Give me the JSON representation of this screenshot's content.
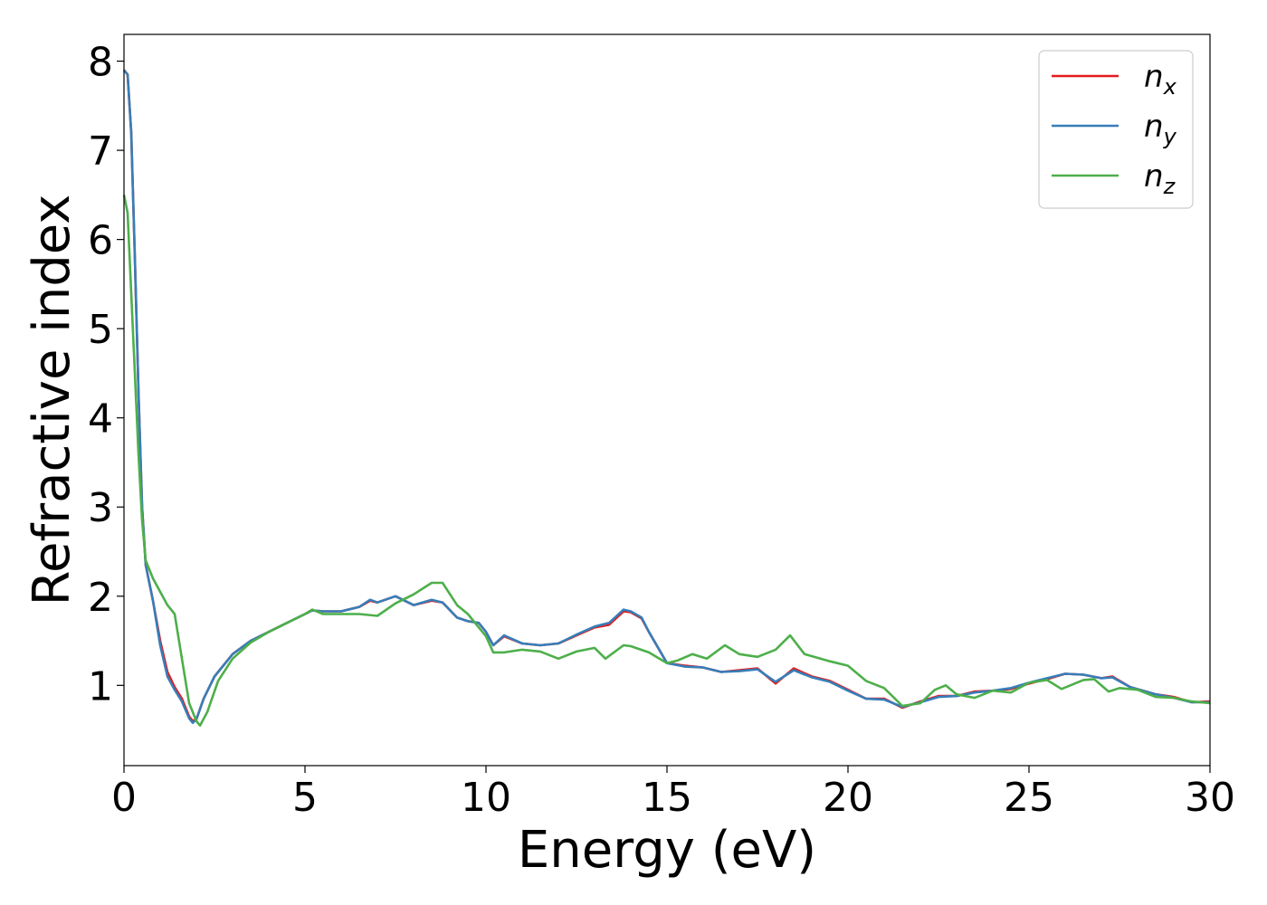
{
  "chart_data": {
    "type": "line",
    "xlabel": "Energy (eV)",
    "ylabel": "Refractive index",
    "xlim": [
      0,
      30
    ],
    "ylim": [
      0.1,
      8.3
    ],
    "xticks": [
      "0",
      "5",
      "10",
      "15",
      "20",
      "25",
      "30"
    ],
    "yticks": [
      "1",
      "2",
      "3",
      "4",
      "5",
      "6",
      "7",
      "8"
    ],
    "grid": false,
    "legend_position": "top-right",
    "series": [
      {
        "name": "n",
        "subscript": "x",
        "color": "#e41a1c",
        "points": [
          [
            0,
            7.9
          ],
          [
            0.1,
            7.85
          ],
          [
            0.2,
            7.2
          ],
          [
            0.3,
            5.8
          ],
          [
            0.4,
            4.3
          ],
          [
            0.5,
            3.0
          ],
          [
            0.6,
            2.35
          ],
          [
            0.8,
            1.95
          ],
          [
            1.0,
            1.5
          ],
          [
            1.2,
            1.15
          ],
          [
            1.4,
            0.98
          ],
          [
            1.6,
            0.85
          ],
          [
            1.8,
            0.65
          ],
          [
            1.9,
            0.6
          ],
          [
            2.0,
            0.62
          ],
          [
            2.2,
            0.85
          ],
          [
            2.5,
            1.1
          ],
          [
            3.0,
            1.35
          ],
          [
            3.5,
            1.5
          ],
          [
            4.0,
            1.6
          ],
          [
            4.5,
            1.7
          ],
          [
            5.0,
            1.8
          ],
          [
            5.2,
            1.84
          ],
          [
            5.5,
            1.83
          ],
          [
            6.0,
            1.83
          ],
          [
            6.5,
            1.88
          ],
          [
            6.8,
            1.95
          ],
          [
            7.0,
            1.93
          ],
          [
            7.5,
            2.0
          ],
          [
            8.0,
            1.9
          ],
          [
            8.5,
            1.95
          ],
          [
            8.8,
            1.93
          ],
          [
            9.2,
            1.76
          ],
          [
            9.5,
            1.72
          ],
          [
            9.8,
            1.7
          ],
          [
            10.0,
            1.6
          ],
          [
            10.2,
            1.45
          ],
          [
            10.5,
            1.55
          ],
          [
            11.0,
            1.47
          ],
          [
            11.5,
            1.45
          ],
          [
            12.0,
            1.47
          ],
          [
            12.5,
            1.56
          ],
          [
            13.0,
            1.65
          ],
          [
            13.4,
            1.68
          ],
          [
            13.8,
            1.83
          ],
          [
            14.0,
            1.82
          ],
          [
            14.3,
            1.75
          ],
          [
            14.5,
            1.6
          ],
          [
            15.0,
            1.25
          ],
          [
            15.5,
            1.22
          ],
          [
            16.0,
            1.2
          ],
          [
            16.5,
            1.15
          ],
          [
            17.0,
            1.17
          ],
          [
            17.5,
            1.19
          ],
          [
            18.0,
            1.02
          ],
          [
            18.5,
            1.19
          ],
          [
            19.0,
            1.1
          ],
          [
            19.5,
            1.05
          ],
          [
            20.0,
            0.95
          ],
          [
            20.5,
            0.85
          ],
          [
            21.0,
            0.85
          ],
          [
            21.5,
            0.75
          ],
          [
            22.0,
            0.82
          ],
          [
            22.5,
            0.88
          ],
          [
            23.0,
            0.88
          ],
          [
            23.5,
            0.93
          ],
          [
            24.0,
            0.94
          ],
          [
            24.5,
            0.96
          ],
          [
            25.0,
            1.02
          ],
          [
            25.5,
            1.07
          ],
          [
            26.0,
            1.13
          ],
          [
            26.5,
            1.12
          ],
          [
            27.0,
            1.08
          ],
          [
            27.3,
            1.1
          ],
          [
            27.8,
            0.98
          ],
          [
            28.5,
            0.9
          ],
          [
            29.0,
            0.87
          ],
          [
            29.5,
            0.81
          ],
          [
            30.0,
            0.82
          ]
        ]
      },
      {
        "name": "n",
        "subscript": "y",
        "color": "#377eb8",
        "points": [
          [
            0,
            7.9
          ],
          [
            0.1,
            7.85
          ],
          [
            0.2,
            7.2
          ],
          [
            0.3,
            5.8
          ],
          [
            0.4,
            4.3
          ],
          [
            0.5,
            3.0
          ],
          [
            0.6,
            2.35
          ],
          [
            0.8,
            1.95
          ],
          [
            1.0,
            1.45
          ],
          [
            1.2,
            1.1
          ],
          [
            1.4,
            0.95
          ],
          [
            1.6,
            0.82
          ],
          [
            1.8,
            0.63
          ],
          [
            1.9,
            0.58
          ],
          [
            2.0,
            0.62
          ],
          [
            2.2,
            0.85
          ],
          [
            2.5,
            1.1
          ],
          [
            3.0,
            1.35
          ],
          [
            3.5,
            1.5
          ],
          [
            4.0,
            1.6
          ],
          [
            4.5,
            1.7
          ],
          [
            5.0,
            1.8
          ],
          [
            5.2,
            1.84
          ],
          [
            5.5,
            1.83
          ],
          [
            6.0,
            1.83
          ],
          [
            6.5,
            1.88
          ],
          [
            6.8,
            1.96
          ],
          [
            7.0,
            1.93
          ],
          [
            7.5,
            2.0
          ],
          [
            8.0,
            1.9
          ],
          [
            8.5,
            1.96
          ],
          [
            8.8,
            1.93
          ],
          [
            9.2,
            1.76
          ],
          [
            9.5,
            1.72
          ],
          [
            9.8,
            1.7
          ],
          [
            10.0,
            1.6
          ],
          [
            10.2,
            1.45
          ],
          [
            10.5,
            1.56
          ],
          [
            11.0,
            1.47
          ],
          [
            11.5,
            1.45
          ],
          [
            12.0,
            1.47
          ],
          [
            12.5,
            1.57
          ],
          [
            13.0,
            1.66
          ],
          [
            13.4,
            1.7
          ],
          [
            13.8,
            1.85
          ],
          [
            14.0,
            1.83
          ],
          [
            14.3,
            1.76
          ],
          [
            14.5,
            1.6
          ],
          [
            15.0,
            1.25
          ],
          [
            15.5,
            1.21
          ],
          [
            16.0,
            1.2
          ],
          [
            16.5,
            1.15
          ],
          [
            17.0,
            1.16
          ],
          [
            17.5,
            1.18
          ],
          [
            18.0,
            1.04
          ],
          [
            18.5,
            1.17
          ],
          [
            19.0,
            1.09
          ],
          [
            19.5,
            1.04
          ],
          [
            20.0,
            0.94
          ],
          [
            20.5,
            0.85
          ],
          [
            21.0,
            0.84
          ],
          [
            21.5,
            0.76
          ],
          [
            22.0,
            0.81
          ],
          [
            22.5,
            0.87
          ],
          [
            23.0,
            0.88
          ],
          [
            23.5,
            0.92
          ],
          [
            24.0,
            0.94
          ],
          [
            24.5,
            0.97
          ],
          [
            25.0,
            1.03
          ],
          [
            25.5,
            1.08
          ],
          [
            26.0,
            1.13
          ],
          [
            26.5,
            1.12
          ],
          [
            27.0,
            1.08
          ],
          [
            27.3,
            1.09
          ],
          [
            27.8,
            0.98
          ],
          [
            28.5,
            0.9
          ],
          [
            29.0,
            0.86
          ],
          [
            29.5,
            0.81
          ],
          [
            30.0,
            0.81
          ]
        ]
      },
      {
        "name": "n",
        "subscript": "z",
        "color": "#4daf4a",
        "points": [
          [
            0,
            6.5
          ],
          [
            0.1,
            6.3
          ],
          [
            0.2,
            5.4
          ],
          [
            0.3,
            4.5
          ],
          [
            0.4,
            3.6
          ],
          [
            0.5,
            2.85
          ],
          [
            0.6,
            2.4
          ],
          [
            0.8,
            2.2
          ],
          [
            1.0,
            2.05
          ],
          [
            1.2,
            1.9
          ],
          [
            1.4,
            1.8
          ],
          [
            1.6,
            1.3
          ],
          [
            1.8,
            0.8
          ],
          [
            2.0,
            0.6
          ],
          [
            2.1,
            0.55
          ],
          [
            2.3,
            0.7
          ],
          [
            2.6,
            1.05
          ],
          [
            3.0,
            1.3
          ],
          [
            3.5,
            1.48
          ],
          [
            4.0,
            1.6
          ],
          [
            4.5,
            1.7
          ],
          [
            5.0,
            1.8
          ],
          [
            5.2,
            1.85
          ],
          [
            5.5,
            1.8
          ],
          [
            6.0,
            1.8
          ],
          [
            6.5,
            1.8
          ],
          [
            7.0,
            1.78
          ],
          [
            7.5,
            1.92
          ],
          [
            8.0,
            2.02
          ],
          [
            8.5,
            2.15
          ],
          [
            8.8,
            2.15
          ],
          [
            9.2,
            1.9
          ],
          [
            9.5,
            1.8
          ],
          [
            10.0,
            1.55
          ],
          [
            10.2,
            1.37
          ],
          [
            10.5,
            1.37
          ],
          [
            11.0,
            1.4
          ],
          [
            11.5,
            1.38
          ],
          [
            12.0,
            1.3
          ],
          [
            12.5,
            1.38
          ],
          [
            13.0,
            1.42
          ],
          [
            13.3,
            1.3
          ],
          [
            13.8,
            1.45
          ],
          [
            14.0,
            1.44
          ],
          [
            14.5,
            1.37
          ],
          [
            15.0,
            1.25
          ],
          [
            15.3,
            1.28
          ],
          [
            15.7,
            1.35
          ],
          [
            16.1,
            1.3
          ],
          [
            16.6,
            1.45
          ],
          [
            17.0,
            1.35
          ],
          [
            17.5,
            1.32
          ],
          [
            18.0,
            1.4
          ],
          [
            18.4,
            1.56
          ],
          [
            18.8,
            1.35
          ],
          [
            19.5,
            1.27
          ],
          [
            20.0,
            1.22
          ],
          [
            20.5,
            1.05
          ],
          [
            21.0,
            0.97
          ],
          [
            21.5,
            0.77
          ],
          [
            22.0,
            0.8
          ],
          [
            22.4,
            0.95
          ],
          [
            22.7,
            1.0
          ],
          [
            23.0,
            0.9
          ],
          [
            23.5,
            0.86
          ],
          [
            24.0,
            0.94
          ],
          [
            24.5,
            0.92
          ],
          [
            25.0,
            1.03
          ],
          [
            25.5,
            1.06
          ],
          [
            25.9,
            0.96
          ],
          [
            26.5,
            1.06
          ],
          [
            26.8,
            1.07
          ],
          [
            27.2,
            0.93
          ],
          [
            27.5,
            0.97
          ],
          [
            28.0,
            0.95
          ],
          [
            28.5,
            0.87
          ],
          [
            29.0,
            0.86
          ],
          [
            29.5,
            0.82
          ],
          [
            30.0,
            0.8
          ]
        ]
      }
    ]
  }
}
